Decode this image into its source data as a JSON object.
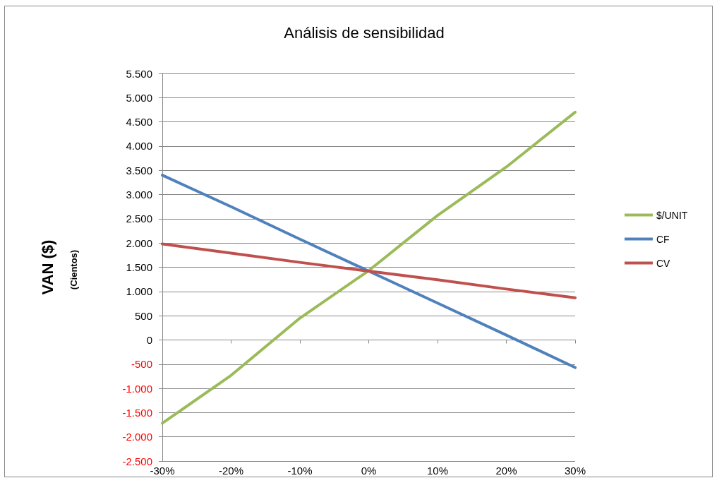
{
  "chart_data": {
    "type": "line",
    "title": "Análisis de sensibilidad",
    "ylabel": "VAN ($)",
    "annotations": [
      "(Cientos)"
    ],
    "categories": [
      "-30%",
      "-20%",
      "-10%",
      "0%",
      "10%",
      "20%",
      "30%"
    ],
    "series": [
      {
        "name": "$/UNIT",
        "color": "#9bbb59",
        "values": [
          -1720,
          -730,
          450,
          1430,
          2570,
          3570,
          4700
        ]
      },
      {
        "name": "CF",
        "color": "#4f81bd",
        "values": [
          3400,
          2750,
          2080,
          1420,
          760,
          100,
          -570
        ]
      },
      {
        "name": "CV",
        "color": "#c0504d",
        "values": [
          1980,
          1790,
          1600,
          1420,
          1240,
          1050,
          870
        ]
      }
    ],
    "ylim": [
      -2500,
      5500
    ],
    "yticks": [
      {
        "value": -2500,
        "label": "-2.500"
      },
      {
        "value": -2000,
        "label": "-2.000"
      },
      {
        "value": -1500,
        "label": "-1.500"
      },
      {
        "value": -1000,
        "label": "-1.000"
      },
      {
        "value": -500,
        "label": "-500"
      },
      {
        "value": 0,
        "label": "0"
      },
      {
        "value": 500,
        "label": "500"
      },
      {
        "value": 1000,
        "label": "1.000"
      },
      {
        "value": 1500,
        "label": "1.500"
      },
      {
        "value": 2000,
        "label": "2.000"
      },
      {
        "value": 2500,
        "label": "2.500"
      },
      {
        "value": 3000,
        "label": "3.000"
      },
      {
        "value": 3500,
        "label": "3.500"
      },
      {
        "value": 4000,
        "label": "4.000"
      },
      {
        "value": 4500,
        "label": "4.500"
      },
      {
        "value": 5000,
        "label": "5.000"
      },
      {
        "value": 5500,
        "label": "5.500"
      }
    ],
    "grid": "y",
    "legend": "right",
    "marker": "none",
    "line_style": "solid"
  }
}
